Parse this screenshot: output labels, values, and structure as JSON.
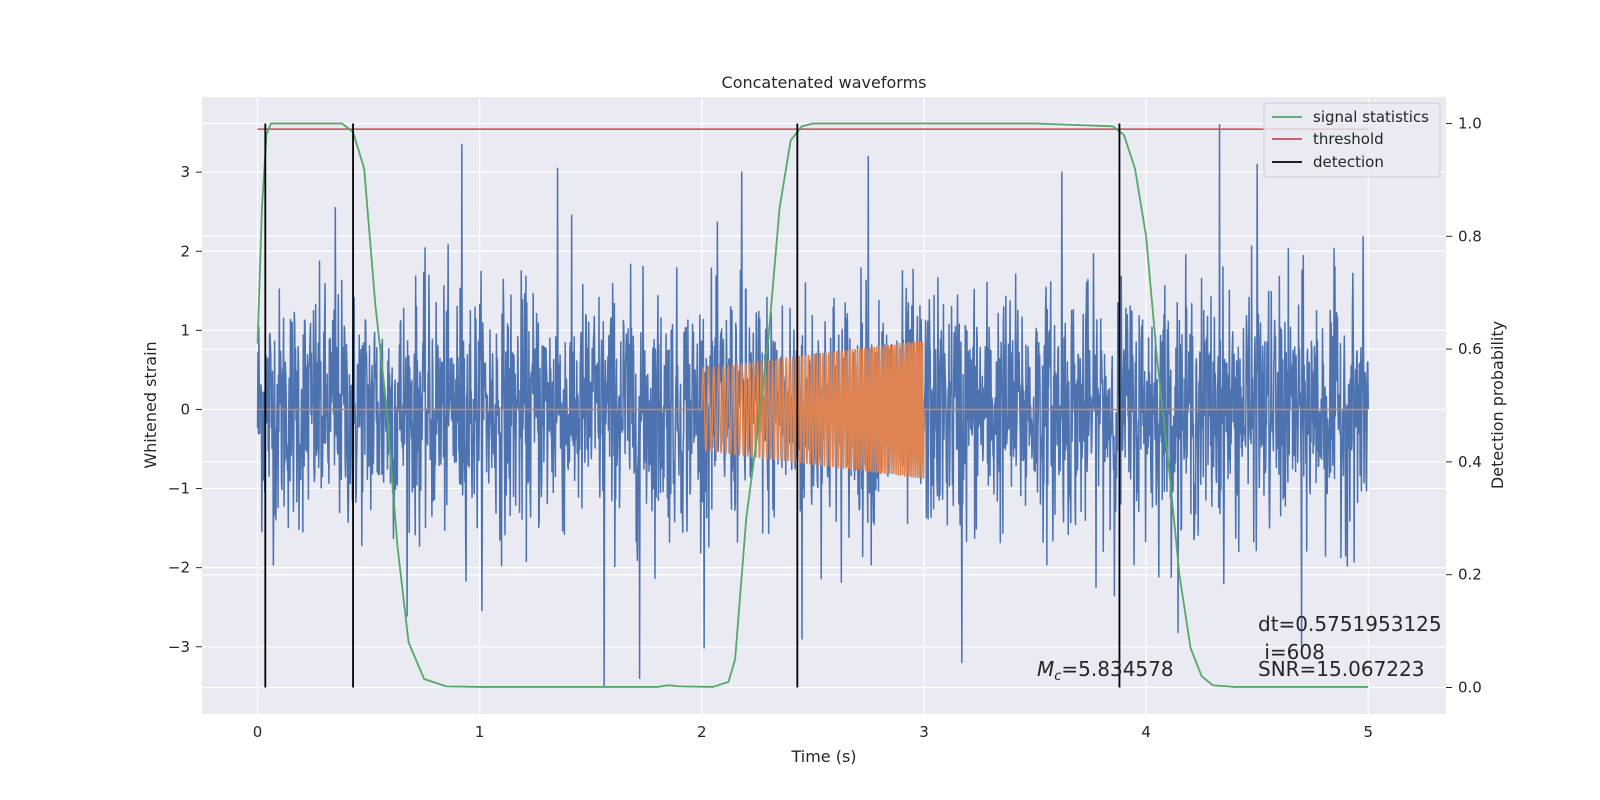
{
  "chart_data": {
    "type": "line",
    "title": "Concatenated waveforms",
    "xlabel": "Time (s)",
    "ylabel": "Whitened strain",
    "y2label": "Detection probability",
    "xlim": [
      -0.25,
      5.35
    ],
    "ylim": [
      -3.85,
      3.95
    ],
    "y2lim": [
      -0.047,
      1.047
    ],
    "xticks": [
      0,
      1,
      2,
      3,
      4,
      5
    ],
    "yticks": [
      -3,
      -2,
      -1,
      0,
      1,
      2,
      3
    ],
    "y2ticks": [
      0.0,
      0.2,
      0.4,
      0.6,
      0.8,
      1.0
    ],
    "xtick_labels": [
      "0",
      "1",
      "2",
      "3",
      "4",
      "5"
    ],
    "ytick_labels": [
      "−3",
      "−2",
      "−1",
      "0",
      "1",
      "2",
      "3"
    ],
    "y2tick_labels": [
      "0.0",
      "0.2",
      "0.4",
      "0.6",
      "0.8",
      "1.0"
    ],
    "grid": true,
    "legend_position": "top-right",
    "background": "#eaeaf2",
    "series": [
      {
        "name": "",
        "axis": "left",
        "color": "#4c72b0",
        "description_kind": "noise",
        "x_range": [
          0,
          5
        ],
        "amplitude": 0.75,
        "spikes": [
          [
            0.35,
            2.55
          ],
          [
            0.92,
            3.35
          ],
          [
            1.35,
            3.05
          ],
          [
            1.56,
            -3.5
          ],
          [
            1.72,
            -3.4
          ],
          [
            2.18,
            3.0
          ],
          [
            2.45,
            -2.9
          ],
          [
            2.75,
            3.2
          ],
          [
            3.17,
            -3.2
          ],
          [
            3.62,
            3.0
          ],
          [
            4.33,
            3.6
          ],
          [
            4.7,
            -3.0
          ],
          [
            4.5,
            3.1
          ]
        ]
      },
      {
        "name": "",
        "axis": "left",
        "color": "#dd8452",
        "description_kind": "chirp",
        "x_range": [
          0,
          5
        ],
        "chirp_start": 2.0,
        "chirp_end": 3.0,
        "amp_start": 0.52,
        "amp_end": 0.88
      },
      {
        "name": "signal statistics",
        "axis": "right",
        "color": "#55a868",
        "x": [
          0.0,
          0.02,
          0.04,
          0.06,
          0.1,
          0.2,
          0.38,
          0.43,
          0.48,
          0.53,
          0.58,
          0.63,
          0.68,
          0.75,
          0.85,
          1.0,
          1.5,
          1.8,
          1.85,
          1.9,
          2.05,
          2.12,
          2.15,
          2.2,
          2.25,
          2.3,
          2.35,
          2.4,
          2.45,
          2.5,
          2.6,
          3.0,
          3.5,
          3.85,
          3.9,
          3.95,
          4.0,
          4.05,
          4.1,
          4.15,
          4.2,
          4.25,
          4.3,
          4.4,
          5.0
        ],
        "y": [
          0.61,
          0.85,
          0.98,
          1.0,
          1.0,
          1.0,
          1.0,
          0.985,
          0.92,
          0.68,
          0.5,
          0.25,
          0.08,
          0.015,
          0.002,
          0.001,
          0.001,
          0.001,
          0.004,
          0.002,
          0.001,
          0.01,
          0.05,
          0.3,
          0.45,
          0.62,
          0.85,
          0.97,
          0.995,
          1.0,
          1.0,
          1.0,
          1.0,
          0.995,
          0.98,
          0.92,
          0.8,
          0.58,
          0.4,
          0.2,
          0.07,
          0.02,
          0.004,
          0.001,
          0.001
        ]
      },
      {
        "name": "threshold",
        "axis": "right",
        "color": "#c44e52",
        "x": [
          0,
          5
        ],
        "y": [
          0.99,
          0.99
        ]
      }
    ],
    "detection": {
      "name": "detection",
      "color": "#000000",
      "x": [
        0.035,
        0.43,
        2.43,
        3.88
      ],
      "y_range": [
        0.0,
        1.0
      ]
    },
    "annotations": {
      "mc_symbol": "M",
      "mc_sub": "c",
      "mc_value": "=5.834578",
      "dt": "dt=0.5751953125",
      "i": " i=608",
      "snr": "SNR=15.067223"
    }
  }
}
